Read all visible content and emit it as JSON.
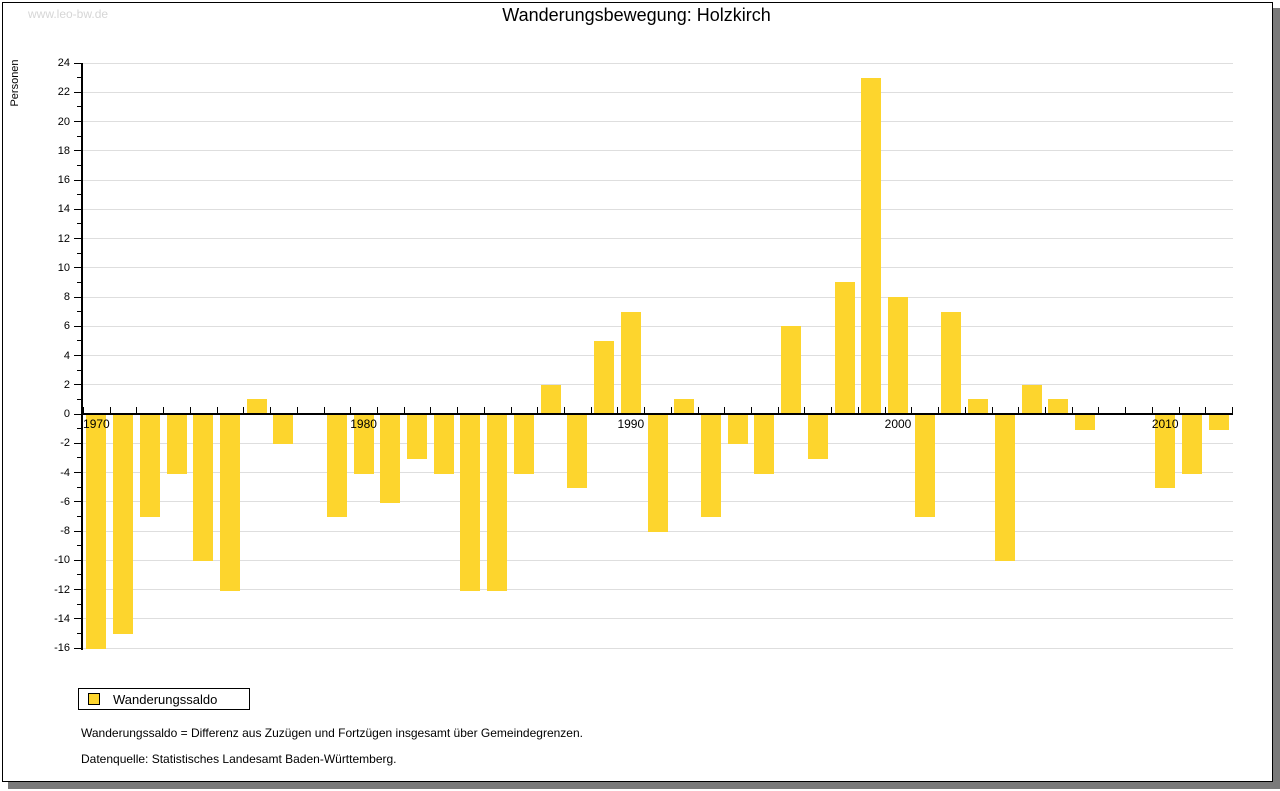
{
  "watermark": "www.leo-bw.de",
  "title": "Wanderungsbewegung: Holzkirch",
  "y_axis_label": "Personen",
  "legend": {
    "label": "Wanderungssaldo"
  },
  "footnotes": {
    "line1": "Wanderungssaldo = Differenz aus Zuzügen und Fortzügen insgesamt über Gemeindegrenzen.",
    "line2": "Datenquelle: Statistisches Landesamt Baden-Württemberg."
  },
  "colors": {
    "bar": "#fdd52d",
    "grid": "#dedede",
    "axis": "#000000",
    "shadow": "#7a7a7a",
    "watermark": "#d6d6d6"
  },
  "chart_data": {
    "type": "bar",
    "title": "Wanderungsbewegung: Holzkirch",
    "xlabel": "",
    "ylabel": "Personen",
    "series_name": "Wanderungssaldo",
    "years": [
      1970,
      1971,
      1972,
      1973,
      1974,
      1975,
      1976,
      1977,
      1978,
      1979,
      1980,
      1981,
      1982,
      1983,
      1984,
      1985,
      1986,
      1987,
      1988,
      1989,
      1990,
      1991,
      1992,
      1993,
      1994,
      1995,
      1996,
      1997,
      1998,
      1999,
      2000,
      2001,
      2002,
      2003,
      2004,
      2005,
      2006,
      2007,
      2008,
      2009,
      2010,
      2011,
      2012
    ],
    "values": [
      -16,
      -15,
      -7,
      -4,
      -10,
      -12,
      1,
      -2,
      0,
      -7,
      -4,
      -6,
      -3,
      -4,
      -12,
      -12,
      -4,
      2,
      -5,
      5,
      7,
      -8,
      1,
      -7,
      -2,
      -4,
      6,
      -3,
      9,
      23,
      8,
      -7,
      7,
      1,
      -10,
      2,
      1,
      -1,
      0,
      0,
      -5,
      -4,
      -1
    ],
    "ylim": [
      -16,
      24
    ],
    "ytick_step": 2,
    "xticks": [
      1970,
      1980,
      1990,
      2000,
      2010
    ],
    "grid": true,
    "legend_position": "bottom-left"
  }
}
